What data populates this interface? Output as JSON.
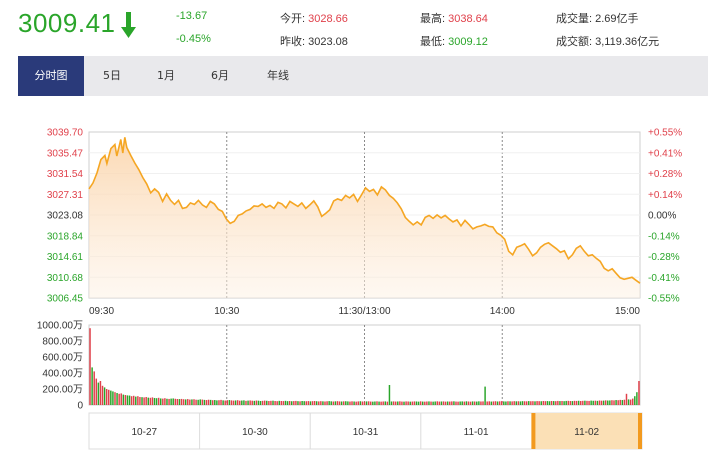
{
  "quote": {
    "price": "3009.41",
    "change": "-13.67",
    "change_pct": "-0.45%",
    "open_label": "今开:",
    "open_value": "3028.66",
    "prev_close_label": "昨收:",
    "prev_close_value": "3023.08",
    "high_label": "最高:",
    "high_value": "3038.64",
    "low_label": "最低:",
    "low_value": "3009.12",
    "volume_label": "成交量:",
    "volume_value": "2.69亿手",
    "turnover_label": "成交额:",
    "turnover_value": "3,119.36亿元"
  },
  "tabs": [
    "分时图",
    "5日",
    "1月",
    "6月",
    "年线"
  ],
  "active_tab": 0,
  "colors": {
    "up": "#e0414b",
    "down": "#2aa52a",
    "line": "#f5a623",
    "accent": "#2a3a7a"
  },
  "chart_data": [
    {
      "type": "area",
      "y_ticks_left": [
        "3039.70",
        "3035.47",
        "3031.54",
        "3027.31",
        "3023.08",
        "3018.84",
        "3014.61",
        "3010.68",
        "3006.45"
      ],
      "y_ticks_right": [
        "+0.55%",
        "+0.41%",
        "+0.28%",
        "+0.14%",
        "0.00%",
        "-0.14%",
        "-0.28%",
        "-0.41%",
        "-0.55%"
      ],
      "x_ticks": [
        "09:30",
        "10:30",
        "11:30/13:00",
        "14:00",
        "15:00"
      ],
      "ylim": [
        3006.45,
        3039.7
      ],
      "baseline": 3023.08,
      "points": [
        [
          0,
          3028.3
        ],
        [
          2,
          3029.5
        ],
        [
          4,
          3031.5
        ],
        [
          6,
          3034.2
        ],
        [
          8,
          3035.0
        ],
        [
          9,
          3033.4
        ],
        [
          11,
          3036.4
        ],
        [
          13,
          3037.2
        ],
        [
          14,
          3034.9
        ],
        [
          16,
          3038.2
        ],
        [
          17,
          3035.5
        ],
        [
          18,
          3038.64
        ],
        [
          19,
          3036.6
        ],
        [
          21,
          3035.0
        ],
        [
          23,
          3033.5
        ],
        [
          25,
          3032.2
        ],
        [
          27,
          3030.6
        ],
        [
          29,
          3029.3
        ],
        [
          31,
          3027.5
        ],
        [
          33,
          3028.3
        ],
        [
          35,
          3027.6
        ],
        [
          37,
          3025.8
        ],
        [
          39,
          3027.3
        ],
        [
          41,
          3026.0
        ],
        [
          43,
          3025.2
        ],
        [
          45,
          3026.0
        ],
        [
          47,
          3024.4
        ],
        [
          49,
          3024.6
        ],
        [
          51,
          3025.5
        ],
        [
          53,
          3025.2
        ],
        [
          55,
          3026.0
        ],
        [
          57,
          3025.1
        ],
        [
          59,
          3024.6
        ],
        [
          61,
          3025.8
        ],
        [
          63,
          3025.3
        ],
        [
          65,
          3024.2
        ],
        [
          67,
          3023.8
        ],
        [
          69,
          3022.3
        ],
        [
          71,
          3021.4
        ],
        [
          73,
          3021.8
        ],
        [
          75,
          3023.0
        ],
        [
          77,
          3023.3
        ],
        [
          79,
          3023.9
        ],
        [
          81,
          3024.2
        ],
        [
          83,
          3024.9
        ],
        [
          85,
          3024.8
        ],
        [
          87,
          3025.3
        ],
        [
          89,
          3024.6
        ],
        [
          91,
          3025.0
        ],
        [
          93,
          3024.4
        ],
        [
          95,
          3025.6
        ],
        [
          97,
          3025.3
        ],
        [
          99,
          3024.5
        ],
        [
          101,
          3025.8
        ],
        [
          103,
          3025.3
        ],
        [
          105,
          3024.8
        ],
        [
          107,
          3025.5
        ],
        [
          109,
          3024.4
        ],
        [
          111,
          3025.1
        ],
        [
          113,
          3025.9
        ],
        [
          115,
          3024.7
        ],
        [
          117,
          3022.8
        ],
        [
          119,
          3023.4
        ],
        [
          121,
          3024.1
        ],
        [
          123,
          3025.9
        ],
        [
          125,
          3026.3
        ],
        [
          127,
          3026.0
        ],
        [
          129,
          3027.0
        ],
        [
          131,
          3026.5
        ],
        [
          133,
          3027.2
        ],
        [
          135,
          3025.8
        ],
        [
          137,
          3027.1
        ],
        [
          139,
          3028.5
        ],
        [
          141,
          3027.8
        ],
        [
          143,
          3028.2
        ],
        [
          145,
          3027.1
        ],
        [
          147,
          3028.7
        ],
        [
          149,
          3028.1
        ],
        [
          151,
          3027.0
        ],
        [
          153,
          3026.4
        ],
        [
          155,
          3025.5
        ],
        [
          157,
          3024.3
        ],
        [
          159,
          3022.6
        ],
        [
          161,
          3021.8
        ],
        [
          163,
          3021.1
        ],
        [
          165,
          3021.7
        ],
        [
          167,
          3021.1
        ],
        [
          169,
          3022.6
        ],
        [
          171,
          3023.0
        ],
        [
          173,
          3022.4
        ],
        [
          175,
          3023.1
        ],
        [
          177,
          3022.5
        ],
        [
          179,
          3023.0
        ],
        [
          181,
          3022.3
        ],
        [
          183,
          3021.7
        ],
        [
          185,
          3022.1
        ],
        [
          187,
          3020.9
        ],
        [
          189,
          3022.0
        ],
        [
          191,
          3021.2
        ],
        [
          193,
          3020.3
        ],
        [
          195,
          3020.7
        ],
        [
          197,
          3020.9
        ],
        [
          199,
          3021.2
        ],
        [
          201,
          3020.8
        ],
        [
          203,
          3020.7
        ],
        [
          205,
          3019.5
        ],
        [
          207,
          3019.0
        ],
        [
          209,
          3018.2
        ],
        [
          211,
          3015.8
        ],
        [
          213,
          3015.1
        ],
        [
          215,
          3016.6
        ],
        [
          217,
          3016.9
        ],
        [
          219,
          3017.3
        ],
        [
          221,
          3016.2
        ],
        [
          223,
          3014.9
        ],
        [
          225,
          3015.5
        ],
        [
          227,
          3016.6
        ],
        [
          229,
          3017.2
        ],
        [
          231,
          3017.5
        ],
        [
          233,
          3016.9
        ],
        [
          235,
          3016.3
        ],
        [
          237,
          3015.6
        ],
        [
          239,
          3015.9
        ],
        [
          241,
          3014.3
        ],
        [
          243,
          3015.1
        ],
        [
          245,
          3016.4
        ],
        [
          247,
          3016.9
        ],
        [
          249,
          3015.8
        ],
        [
          251,
          3014.9
        ],
        [
          253,
          3015.1
        ],
        [
          255,
          3014.4
        ],
        [
          257,
          3013.8
        ],
        [
          259,
          3012.4
        ],
        [
          261,
          3011.9
        ],
        [
          263,
          3012.3
        ],
        [
          265,
          3011.4
        ],
        [
          267,
          3010.5
        ],
        [
          269,
          3010.2
        ],
        [
          271,
          3010.4
        ],
        [
          273,
          3010.6
        ],
        [
          275,
          3010.0
        ],
        [
          277,
          3009.41
        ]
      ]
    },
    {
      "type": "bar",
      "y_ticks": [
        "1000.00万",
        "800.00万",
        "600.00万",
        "400.00万",
        "200.00万",
        "0"
      ],
      "ylim": [
        0,
        1000
      ],
      "unit": "万",
      "volumes": [
        960,
        470,
        420,
        330,
        280,
        300,
        240,
        220,
        200,
        190,
        180,
        170,
        160,
        150,
        140,
        145,
        130,
        125,
        120,
        118,
        110,
        115,
        105,
        110,
        100,
        98,
        95,
        100,
        92,
        90,
        95,
        88,
        85,
        90,
        82,
        80,
        85,
        78,
        76,
        80,
        82,
        78,
        75,
        74,
        76,
        72,
        70,
        74,
        68,
        70,
        72,
        66,
        65,
        70,
        68,
        64,
        62,
        66,
        64,
        60,
        62,
        58,
        60,
        64,
        58,
        56,
        60,
        62,
        58,
        55,
        57,
        60,
        54,
        56,
        58,
        52,
        55,
        57,
        54,
        52,
        56,
        54,
        50,
        52,
        55,
        53,
        50,
        52,
        54,
        50,
        48,
        52,
        50,
        49,
        52,
        48,
        50,
        47,
        49,
        51,
        48,
        46,
        50,
        48,
        47,
        49,
        46,
        48,
        50,
        47,
        45,
        48,
        46,
        44,
        47,
        49,
        46,
        44,
        46,
        48,
        45,
        44,
        46,
        47,
        45,
        43,
        46,
        44,
        42,
        45,
        47,
        44,
        43,
        45,
        46,
        43,
        42,
        44,
        46,
        43,
        42,
        44,
        45,
        42,
        250,
        44,
        45,
        43,
        44,
        46,
        43,
        42,
        45,
        44,
        42,
        43,
        45,
        44,
        42,
        46,
        43,
        42,
        44,
        45,
        43,
        42,
        44,
        46,
        43,
        44,
        45,
        42,
        44,
        43,
        45,
        46,
        43,
        42,
        44,
        45,
        43,
        46,
        44,
        42,
        45,
        44,
        43,
        46,
        44,
        45,
        230,
        44,
        46,
        43,
        45,
        47,
        44,
        46,
        48,
        45,
        44,
        47,
        46,
        45,
        48,
        46,
        47,
        45,
        48,
        47,
        46,
        49,
        47,
        48,
        46,
        49,
        48,
        47,
        50,
        48,
        49,
        47,
        50,
        49,
        48,
        51,
        49,
        50,
        48,
        51,
        52,
        50,
        49,
        52,
        51,
        53,
        50,
        52,
        54,
        52,
        51,
        55,
        53,
        54,
        52,
        56,
        54,
        55,
        58,
        56,
        57,
        60,
        58,
        62,
        60,
        64,
        62,
        66,
        140,
        70,
        68,
        80,
        110,
        160,
        300
      ]
    }
  ],
  "date_nav": {
    "dates": [
      "10-27",
      "10-30",
      "10-31",
      "11-01",
      "11-02"
    ],
    "active": 4
  }
}
